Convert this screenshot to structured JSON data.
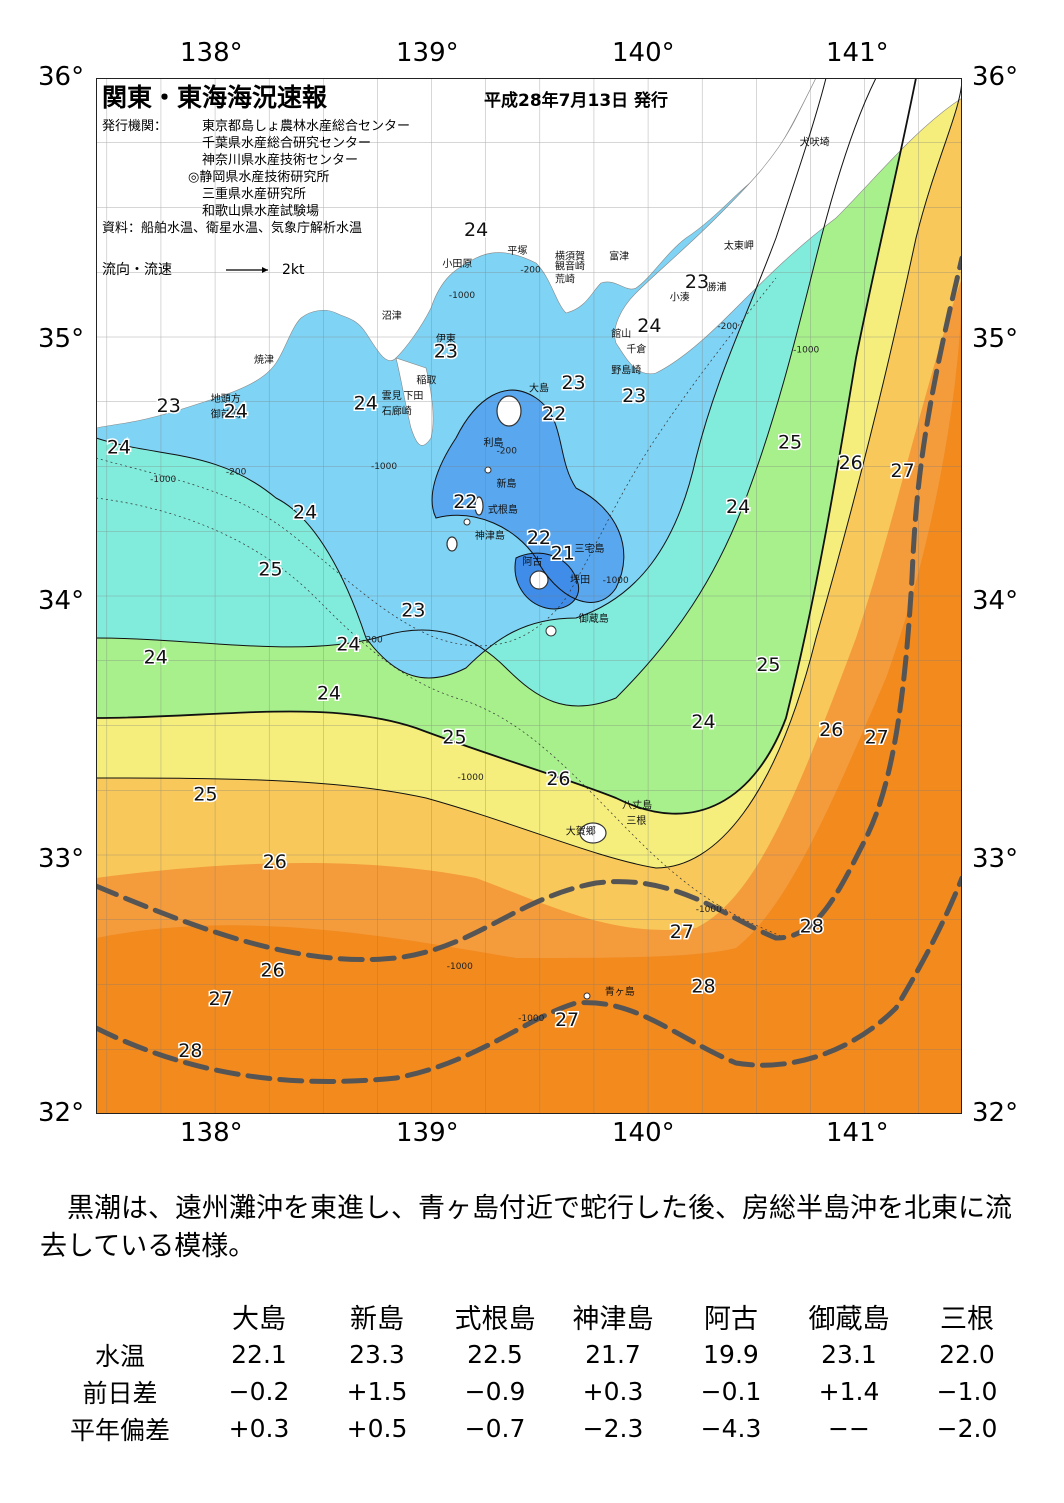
{
  "map": {
    "title": "関東・東海海況速報",
    "date": "平成28年7月13日 発行",
    "issuer_label": "発行機関：",
    "issuers": [
      "東京都島しょ農林水産総合センター",
      "千葉県水産総合研究センター",
      "神奈川県水産技術センター",
      "◎静岡県水産技術研究所",
      "三重県水産研究所",
      "和歌山県水産試験場"
    ],
    "source": "資料：船舶水温、衛星水温、気象庁解析水温",
    "flow_label": "流向・流速",
    "flow_scale": "2kt",
    "lon_labels": [
      "138°",
      "139°",
      "140°",
      "141°"
    ],
    "lat_labels": [
      "36°",
      "35°",
      "34°",
      "33°",
      "32°"
    ],
    "extent": {
      "lon": [
        137.45,
        141.45
      ],
      "lat": [
        32.0,
        36.0
      ]
    },
    "temperature_colors": {
      "21": "#3f8de8",
      "22": "#58a7ef",
      "23": "#7fd3f4",
      "24": "#82ecdc",
      "25": "#a7f08c",
      "26": "#f5ee7c",
      "27": "#f8c85a",
      "28": "#f49b3c",
      "29": "#f28a1e"
    },
    "kuroshio_color": "#555555",
    "places": [
      {
        "name": "犬吠埼",
        "lon": 140.7,
        "lat": 35.74
      },
      {
        "name": "太東岬",
        "lon": 140.35,
        "lat": 35.34
      },
      {
        "name": "勝浦",
        "lon": 140.27,
        "lat": 35.18
      },
      {
        "name": "小湊",
        "lon": 140.1,
        "lat": 35.14
      },
      {
        "name": "富津",
        "lon": 139.82,
        "lat": 35.3
      },
      {
        "name": "館山",
        "lon": 139.83,
        "lat": 35.0
      },
      {
        "name": "千倉",
        "lon": 139.9,
        "lat": 34.94
      },
      {
        "name": "野島崎",
        "lon": 139.83,
        "lat": 34.86
      },
      {
        "name": "横須賀",
        "lon": 139.57,
        "lat": 35.3
      },
      {
        "name": "観音崎",
        "lon": 139.57,
        "lat": 35.26
      },
      {
        "name": "荒崎",
        "lon": 139.57,
        "lat": 35.21
      },
      {
        "name": "平塚",
        "lon": 139.35,
        "lat": 35.32
      },
      {
        "name": "小田原",
        "lon": 139.05,
        "lat": 35.27
      },
      {
        "name": "沼津",
        "lon": 138.77,
        "lat": 35.07
      },
      {
        "name": "伊東",
        "lon": 139.02,
        "lat": 34.98
      },
      {
        "name": "焼津",
        "lon": 138.18,
        "lat": 34.9
      },
      {
        "name": "稲取",
        "lon": 138.93,
        "lat": 34.82
      },
      {
        "name": "雲見",
        "lon": 138.77,
        "lat": 34.76
      },
      {
        "name": "下田",
        "lon": 138.87,
        "lat": 34.76
      },
      {
        "name": "石廊崎",
        "lon": 138.77,
        "lat": 34.7
      },
      {
        "name": "地頭方",
        "lon": 137.98,
        "lat": 34.75
      },
      {
        "name": "御前崎",
        "lon": 137.98,
        "lat": 34.69
      },
      {
        "name": "大島",
        "lon": 139.45,
        "lat": 34.79
      },
      {
        "name": "利島",
        "lon": 139.24,
        "lat": 34.58
      },
      {
        "name": "新島",
        "lon": 139.3,
        "lat": 34.42
      },
      {
        "name": "式根島",
        "lon": 139.26,
        "lat": 34.32
      },
      {
        "name": "神津島",
        "lon": 139.2,
        "lat": 34.22
      },
      {
        "name": "三宅島",
        "lon": 139.66,
        "lat": 34.17
      },
      {
        "name": "阿古",
        "lon": 139.42,
        "lat": 34.12
      },
      {
        "name": "坪田",
        "lon": 139.64,
        "lat": 34.05
      },
      {
        "name": "御蔵島",
        "lon": 139.68,
        "lat": 33.9
      },
      {
        "name": "八丈島",
        "lon": 139.88,
        "lat": 33.18
      },
      {
        "name": "三根",
        "lon": 139.9,
        "lat": 33.12
      },
      {
        "name": "大賀郷",
        "lon": 139.62,
        "lat": 33.08
      },
      {
        "name": "青ヶ島",
        "lon": 139.8,
        "lat": 32.46
      }
    ],
    "isotherm_labels": [
      {
        "text": "24",
        "lon": 139.15,
        "lat": 35.39
      },
      {
        "text": "23",
        "lon": 140.17,
        "lat": 35.19
      },
      {
        "text": "24",
        "lon": 139.95,
        "lat": 35.02
      },
      {
        "text": "23",
        "lon": 139.01,
        "lat": 34.92
      },
      {
        "text": "23",
        "lon": 139.6,
        "lat": 34.8
      },
      {
        "text": "23",
        "lon": 139.88,
        "lat": 34.75
      },
      {
        "text": "22",
        "lon": 139.51,
        "lat": 34.68
      },
      {
        "text": "23",
        "lon": 137.73,
        "lat": 34.71
      },
      {
        "text": "24",
        "lon": 138.04,
        "lat": 34.69
      },
      {
        "text": "24",
        "lon": 138.64,
        "lat": 34.72
      },
      {
        "text": "24",
        "lon": 137.5,
        "lat": 34.55
      },
      {
        "text": "25",
        "lon": 140.6,
        "lat": 34.57
      },
      {
        "text": "26",
        "lon": 140.88,
        "lat": 34.49
      },
      {
        "text": "27",
        "lon": 141.12,
        "lat": 34.46
      },
      {
        "text": "22",
        "lon": 139.1,
        "lat": 34.34
      },
      {
        "text": "24",
        "lon": 138.36,
        "lat": 34.3
      },
      {
        "text": "24",
        "lon": 140.36,
        "lat": 34.32
      },
      {
        "text": "22",
        "lon": 139.44,
        "lat": 34.2
      },
      {
        "text": "21",
        "lon": 139.55,
        "lat": 34.14
      },
      {
        "text": "25",
        "lon": 138.2,
        "lat": 34.08
      },
      {
        "text": "23",
        "lon": 138.86,
        "lat": 33.92
      },
      {
        "text": "24",
        "lon": 138.56,
        "lat": 33.79
      },
      {
        "text": "24",
        "lon": 137.67,
        "lat": 33.74
      },
      {
        "text": "25",
        "lon": 140.5,
        "lat": 33.71
      },
      {
        "text": "24",
        "lon": 138.47,
        "lat": 33.6
      },
      {
        "text": "24",
        "lon": 140.2,
        "lat": 33.49
      },
      {
        "text": "26",
        "lon": 140.79,
        "lat": 33.46
      },
      {
        "text": "27",
        "lon": 141.0,
        "lat": 33.43
      },
      {
        "text": "25",
        "lon": 139.05,
        "lat": 33.43
      },
      {
        "text": "26",
        "lon": 139.53,
        "lat": 33.27
      },
      {
        "text": "25",
        "lon": 137.9,
        "lat": 33.21
      },
      {
        "text": "26",
        "lon": 138.22,
        "lat": 32.95
      },
      {
        "text": "28",
        "lon": 140.7,
        "lat": 32.7
      },
      {
        "text": "27",
        "lon": 140.1,
        "lat": 32.68
      },
      {
        "text": "26",
        "lon": 138.21,
        "lat": 32.53
      },
      {
        "text": "28",
        "lon": 140.2,
        "lat": 32.47
      },
      {
        "text": "27",
        "lon": 137.97,
        "lat": 32.42
      },
      {
        "text": "27",
        "lon": 139.57,
        "lat": 32.34
      },
      {
        "text": "28",
        "lon": 137.83,
        "lat": 32.22
      }
    ],
    "depth_labels": [
      {
        "text": "-1000",
        "lon": 139.08,
        "lat": 35.15
      },
      {
        "text": "-200",
        "lon": 139.41,
        "lat": 35.25
      },
      {
        "text": "-200",
        "lon": 140.32,
        "lat": 35.03
      },
      {
        "text": "-1000",
        "lon": 140.67,
        "lat": 34.94
      },
      {
        "text": "-200",
        "lon": 138.05,
        "lat": 34.47
      },
      {
        "text": "-1000",
        "lon": 137.7,
        "lat": 34.44
      },
      {
        "text": "-1000",
        "lon": 138.72,
        "lat": 34.49
      },
      {
        "text": "-200",
        "lon": 139.3,
        "lat": 34.55
      },
      {
        "text": "-1000",
        "lon": 139.79,
        "lat": 34.05
      },
      {
        "text": "-200",
        "lon": 138.68,
        "lat": 33.82
      },
      {
        "text": "-1000",
        "lon": 139.12,
        "lat": 33.29
      },
      {
        "text": "-1000",
        "lon": 140.22,
        "lat": 32.78
      },
      {
        "text": "-1000",
        "lon": 139.07,
        "lat": 32.56
      },
      {
        "text": "-1000",
        "lon": 139.4,
        "lat": 32.36
      }
    ]
  },
  "summary": "黒潮は、遠州灘沖を東進し、青ヶ島付近で蛇行した後、房総半島沖を北東に流去している模様。",
  "stats": {
    "columns": [
      "大島",
      "新島",
      "式根島",
      "神津島",
      "阿古",
      "御蔵島",
      "三根"
    ],
    "rows": [
      {
        "label": "水温",
        "values": [
          "22.1",
          "23.3",
          "22.5",
          "21.7",
          "19.9",
          "23.1",
          "22.0"
        ]
      },
      {
        "label": "前日差",
        "values": [
          "−0.2",
          "+1.5",
          "−0.9",
          "+0.3",
          "−0.1",
          "+1.4",
          "−1.0"
        ]
      },
      {
        "label": "平年偏差",
        "values": [
          "+0.3",
          "+0.5",
          "−0.7",
          "−2.3",
          "−4.3",
          "−−",
          "−2.0"
        ]
      }
    ]
  }
}
